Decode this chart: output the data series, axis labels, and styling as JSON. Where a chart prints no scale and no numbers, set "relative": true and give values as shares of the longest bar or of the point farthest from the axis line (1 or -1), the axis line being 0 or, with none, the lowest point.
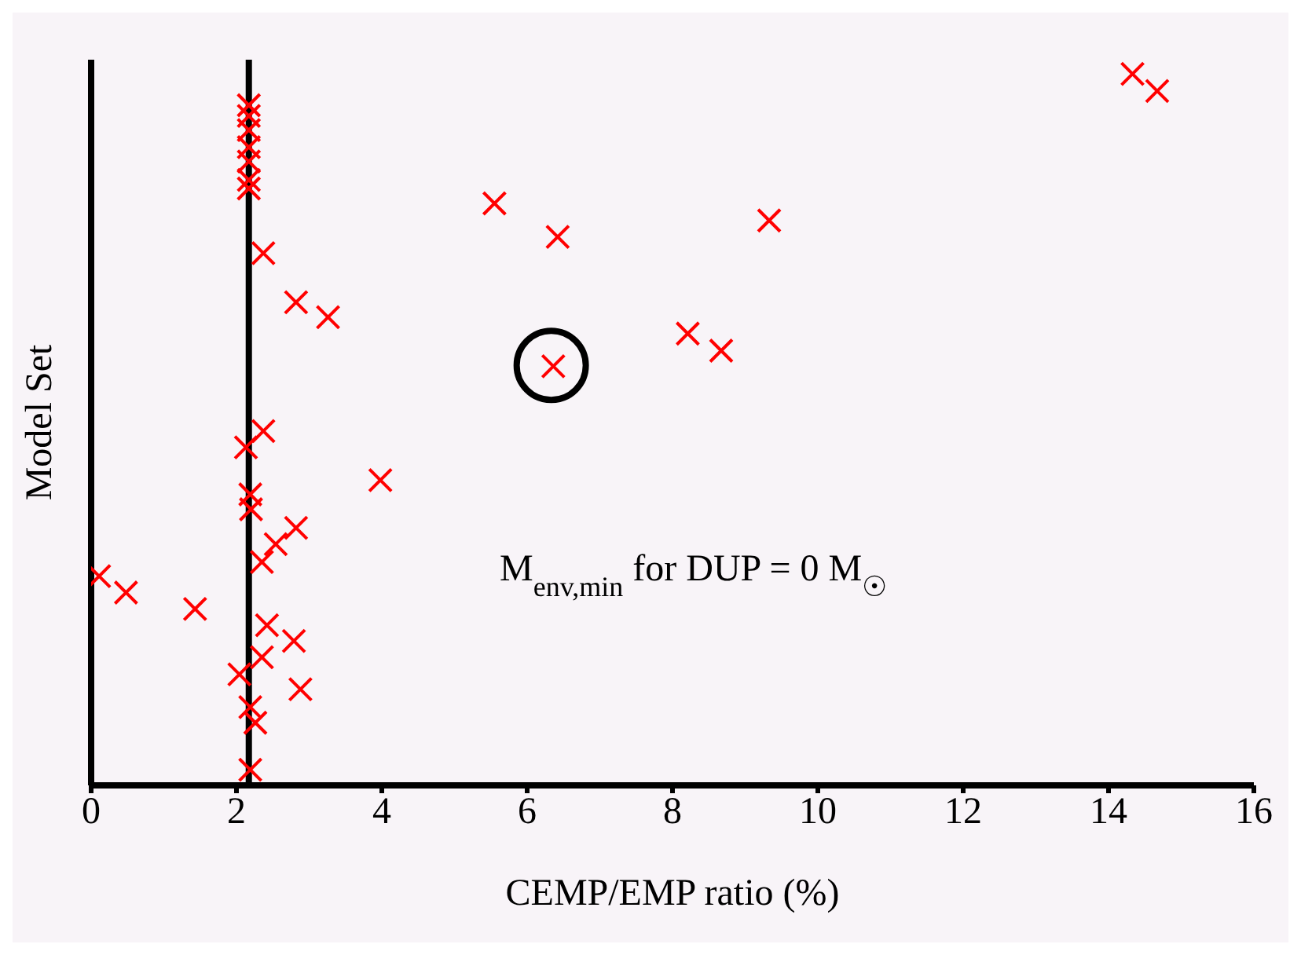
{
  "chart_data": {
    "type": "scatter",
    "relative": true,
    "xlabel": "CEMP/EMP ratio (%)",
    "ylabel": "Model Set",
    "xlim": [
      0,
      16
    ],
    "xticks": [
      0,
      2,
      4,
      6,
      8,
      10,
      12,
      14,
      16
    ],
    "tick_labels": "x",
    "marker": "cross",
    "x": [
      14.33,
      14.67,
      5.55,
      6.42,
      9.33,
      8.21,
      8.67,
      6.36,
      2.17,
      2.17,
      2.17,
      2.17,
      2.17,
      2.17,
      2.17,
      2.37,
      2.82,
      3.26,
      2.37,
      2.13,
      2.19,
      2.2,
      3.98,
      2.82,
      2.54,
      2.35,
      0.11,
      0.48,
      1.43,
      2.42,
      2.79,
      2.35,
      2.04,
      2.88,
      2.19,
      2.26,
      2.19
    ],
    "series": [
      {
        "color": "#ff0000",
        "values": [
          1,
          0.976,
          0.818,
          0.771,
          0.794,
          0.635,
          0.611,
          0.589,
          0.956,
          0.941,
          0.921,
          0.897,
          0.877,
          0.851,
          0.839,
          0.748,
          0.679,
          0.658,
          0.498,
          0.475,
          0.409,
          0.388,
          0.429,
          0.362,
          0.339,
          0.314,
          0.294,
          0.271,
          0.248,
          0.225,
          0.203,
          0.18,
          0.156,
          0.135,
          0.11,
          0.088,
          0.022
        ]
      }
    ],
    "ref_lines": [
      {
        "axis": "x",
        "value": 2.17,
        "label": null,
        "color": "#000000"
      }
    ],
    "annotations": [
      "M$_{env,min}$ for DUP = 0 M$_{☉}$"
    ]
  }
}
